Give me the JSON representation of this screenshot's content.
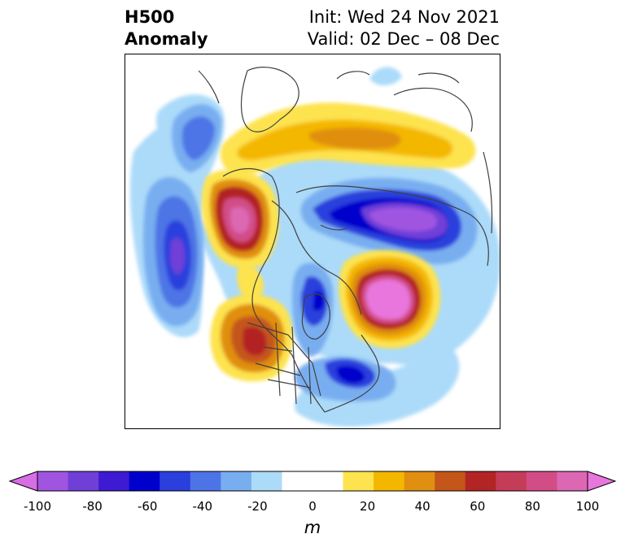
{
  "title": {
    "left_line1": "H500",
    "left_line2": "Anomaly",
    "right_line1": "Init: Wed 24 Nov 2021",
    "right_line2": "Valid: 02 Dec – 08 Dec"
  },
  "colorbar": {
    "unit": "m",
    "min": -100,
    "max": 100,
    "step": 10,
    "ticks": [
      "-100",
      "-80",
      "-60",
      "-40",
      "-20",
      "0",
      "20",
      "40",
      "60",
      "80",
      "100"
    ],
    "colors": [
      "#d86ee6",
      "#a055e0",
      "#6f3fd8",
      "#3e1ad3",
      "#0000cc",
      "#2a3fdc",
      "#4d74e6",
      "#78aef0",
      "#acdaf9",
      "#ffffff",
      "#ffffff",
      "#fde34d",
      "#f4b700",
      "#e08f10",
      "#c4561a",
      "#b32424",
      "#c53c58",
      "#d24d86",
      "#dc68b4",
      "#e876dc"
    ]
  },
  "map": {
    "projection": "polar-stereographic",
    "features": [
      "coastlines",
      "country-borders",
      "us-state-borders"
    ]
  }
}
